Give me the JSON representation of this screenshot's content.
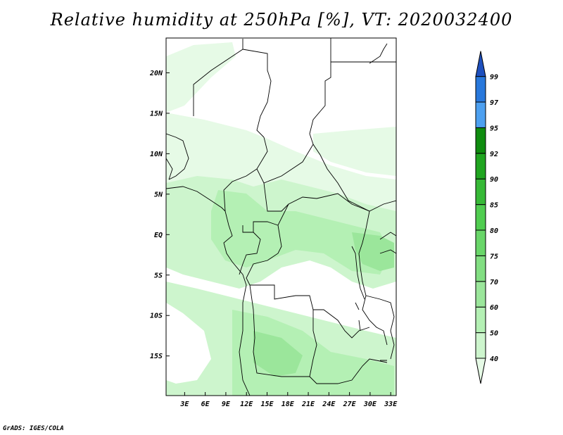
{
  "title": "Relative humidity at 250hPa [%], VT: 2020032400",
  "credit": "GrADS: IGES/COLA",
  "map": {
    "lat_ticks": [
      {
        "label": "20N",
        "value": 20
      },
      {
        "label": "15N",
        "value": 15
      },
      {
        "label": "10N",
        "value": 10
      },
      {
        "label": "5N",
        "value": 5
      },
      {
        "label": "EQ",
        "value": 0
      },
      {
        "label": "5S",
        "value": -5
      },
      {
        "label": "10S",
        "value": -10
      },
      {
        "label": "15S",
        "value": -15
      }
    ],
    "lon_ticks": [
      {
        "label": "3E",
        "value": 3
      },
      {
        "label": "6E",
        "value": 6
      },
      {
        "label": "9E",
        "value": 9
      },
      {
        "label": "12E",
        "value": 12
      },
      {
        "label": "15E",
        "value": 15
      },
      {
        "label": "18E",
        "value": 18
      },
      {
        "label": "21E",
        "value": 21
      },
      {
        "label": "24E",
        "value": 24
      },
      {
        "label": "27E",
        "value": 27
      },
      {
        "label": "30E",
        "value": 30
      },
      {
        "label": "33E",
        "value": 33
      }
    ],
    "extent": {
      "lon": [
        0.3,
        33.8
      ],
      "lat": [
        -19.9,
        24.3
      ]
    }
  },
  "colorbar": {
    "levels": [
      "40",
      "50",
      "60",
      "70",
      "75",
      "80",
      "85",
      "90",
      "92",
      "95",
      "97",
      "99"
    ],
    "colors": [
      "#e6fae6",
      "#cdf5cd",
      "#b4f0b4",
      "#9be69b",
      "#82de82",
      "#69d669",
      "#50cd50",
      "#37b937",
      "#20a520",
      "#0f8c0f",
      "#4da0f0",
      "#2878dc",
      "#1e50be"
    ]
  }
}
